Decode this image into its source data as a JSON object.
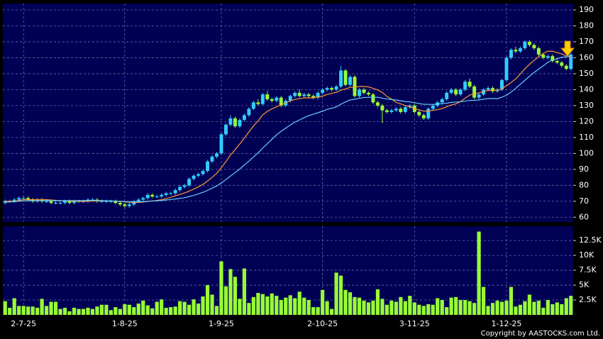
{
  "chart_data": [
    {
      "type": "candlestick",
      "up_color": "#33ccff",
      "down_color": "#99ff33",
      "grid": true,
      "ylim": [
        57,
        194
      ],
      "yticks": [
        60,
        70,
        80,
        90,
        100,
        110,
        120,
        130,
        140,
        150,
        160,
        170,
        180,
        190
      ],
      "open": [
        69,
        70,
        70,
        71,
        72,
        72,
        71,
        70,
        71,
        70,
        70,
        69,
        69,
        69,
        70,
        69,
        70,
        70,
        70,
        71,
        71,
        70,
        70,
        70,
        70,
        69,
        68,
        67,
        68,
        70,
        71,
        72,
        74,
        73,
        73,
        74,
        75,
        75,
        77,
        79,
        80,
        84,
        86,
        87,
        89,
        95,
        98,
        100,
        112,
        118,
        122,
        117,
        121,
        124,
        128,
        132,
        131,
        137,
        134,
        133,
        135,
        130,
        133,
        136,
        138,
        136,
        137,
        136,
        135,
        138,
        140,
        141,
        140,
        142,
        152,
        143,
        148,
        136,
        140,
        138,
        137,
        132,
        130,
        127,
        126,
        127,
        128,
        126,
        129,
        130,
        126,
        124,
        122,
        128,
        130,
        132,
        134,
        138,
        140,
        137,
        140,
        145,
        142,
        135,
        137,
        140,
        141,
        139,
        140,
        146,
        160,
        165,
        164,
        166,
        170,
        168,
        166,
        162,
        160,
        161,
        158,
        157,
        155,
        153
      ],
      "high": [
        71,
        71,
        72,
        73,
        73,
        73,
        72,
        72,
        72,
        71,
        71,
        70,
        70,
        71,
        71,
        71,
        71,
        71,
        72,
        72,
        72,
        71,
        71,
        71,
        71,
        70,
        69,
        69,
        71,
        72,
        73,
        75,
        75,
        74,
        75,
        76,
        76,
        78,
        80,
        81,
        85,
        87,
        88,
        90,
        96,
        99,
        101,
        113,
        119,
        124,
        123,
        122,
        125,
        129,
        133,
        134,
        138,
        139,
        135,
        136,
        136,
        134,
        137,
        139,
        140,
        138,
        138,
        137,
        139,
        141,
        142,
        142,
        143,
        155,
        153,
        149,
        149,
        141,
        141,
        139,
        138,
        133,
        131,
        128,
        128,
        129,
        129,
        130,
        131,
        131,
        127,
        125,
        129,
        131,
        133,
        135,
        139,
        141,
        141,
        141,
        146,
        147,
        143,
        138,
        141,
        142,
        142,
        141,
        147,
        161,
        166,
        167,
        167,
        171,
        171,
        169,
        167,
        163,
        162,
        162,
        159,
        158,
        156,
        163
      ],
      "low": [
        68,
        69,
        69,
        70,
        71,
        70,
        69,
        69,
        69,
        69,
        68,
        68,
        68,
        68,
        68,
        68,
        69,
        69,
        69,
        70,
        69,
        69,
        69,
        69,
        68,
        67,
        66,
        66,
        67,
        69,
        70,
        71,
        72,
        72,
        72,
        73,
        74,
        74,
        76,
        78,
        79,
        83,
        85,
        86,
        88,
        94,
        97,
        99,
        111,
        117,
        116,
        116,
        120,
        123,
        127,
        130,
        130,
        133,
        132,
        132,
        129,
        129,
        132,
        135,
        135,
        135,
        135,
        134,
        134,
        137,
        139,
        139,
        139,
        141,
        142,
        142,
        135,
        135,
        137,
        136,
        131,
        129,
        119,
        125,
        125,
        126,
        125,
        125,
        128,
        125,
        123,
        121,
        121,
        127,
        129,
        131,
        133,
        137,
        136,
        136,
        139,
        141,
        134,
        134,
        136,
        139,
        138,
        138,
        139,
        145,
        159,
        163,
        163,
        165,
        167,
        165,
        161,
        159,
        159,
        157,
        156,
        154,
        152,
        152
      ],
      "close": [
        70,
        70,
        71,
        72,
        72,
        71,
        70,
        71,
        70,
        70,
        69,
        69,
        69,
        70,
        69,
        70,
        70,
        70,
        71,
        71,
        70,
        70,
        70,
        70,
        69,
        68,
        67,
        68,
        70,
        71,
        72,
        74,
        73,
        73,
        74,
        75,
        75,
        77,
        79,
        80,
        84,
        86,
        87,
        89,
        95,
        98,
        100,
        112,
        118,
        122,
        117,
        121,
        124,
        128,
        132,
        131,
        137,
        134,
        133,
        135,
        130,
        133,
        136,
        138,
        136,
        137,
        136,
        135,
        138,
        140,
        141,
        140,
        142,
        152,
        143,
        148,
        136,
        140,
        138,
        137,
        132,
        130,
        127,
        126,
        127,
        128,
        126,
        129,
        130,
        126,
        124,
        122,
        128,
        130,
        132,
        134,
        138,
        140,
        137,
        140,
        145,
        142,
        135,
        137,
        140,
        141,
        139,
        140,
        146,
        160,
        165,
        164,
        166,
        170,
        168,
        166,
        162,
        160,
        161,
        158,
        157,
        155,
        153,
        162
      ],
      "series": [
        {
          "color": "#ff9933",
          "values": [
            70,
            70,
            70,
            70.5,
            71,
            71,
            71,
            71,
            71,
            71,
            70.8,
            70.6,
            70.4,
            70.3,
            70.1,
            70,
            70,
            69.9,
            70,
            70.1,
            70.2,
            70.2,
            70.2,
            70.2,
            70.1,
            69.9,
            69.6,
            69.4,
            69.3,
            69.3,
            69.5,
            69.9,
            70.2,
            70.5,
            71,
            71.7,
            72.5,
            73.4,
            74.3,
            75.2,
            76.4,
            77.6,
            79,
            80.6,
            82.7,
            85,
            87.5,
            91,
            94.9,
            99.1,
            102.4,
            105.9,
            109.6,
            113.5,
            117.2,
            120.5,
            124.2,
            126.4,
            127.9,
            129.2,
            130.5,
            131.7,
            132.9,
            133.9,
            134.3,
            134.9,
            134.8,
            134.9,
            135.4,
            135.9,
            137,
            137.7,
            138.3,
            139.7,
            140.4,
            141.5,
            141.5,
            142,
            142,
            141.7,
            140.8,
            139.8,
            138.3,
            135.7,
            134.1,
            132.1,
            131.1,
            130,
            129.2,
            128.1,
            127.3,
            126.5,
            126.6,
            127,
            127.5,
            128.1,
            129.3,
            130.4,
            131.1,
            132.5,
            134.6,
            136.6,
            137.3,
            138,
            138.8,
            139.5,
            139.6,
            139.6,
            140.5,
            142.5,
            144.5,
            146.7,
            149.8,
            153.1,
            155.9,
            158.4,
            160.7,
            162.7,
            164.2,
            164.1,
            163.3,
            162.4,
            161.1,
            160.3
          ]
        },
        {
          "color": "#66ccff",
          "values": [
            69.5,
            69.6,
            69.8,
            70,
            70.2,
            70.3,
            70.3,
            70.4,
            70.4,
            70.4,
            70.4,
            70.4,
            70.4,
            70.4,
            70.4,
            70.4,
            70.4,
            70.4,
            70.5,
            70.5,
            70.5,
            70.4,
            70.3,
            70.2,
            70.1,
            70,
            69.8,
            69.7,
            69.6,
            69.7,
            69.8,
            70,
            70.2,
            70.3,
            70.5,
            70.8,
            71.1,
            71.4,
            71.8,
            72.2,
            72.9,
            73.7,
            74.6,
            75.6,
            76.8,
            78.2,
            79.6,
            81.5,
            83.6,
            85.8,
            88,
            90.2,
            92.8,
            95.1,
            97.8,
            100.4,
            103.4,
            106.1,
            108.9,
            111.6,
            113.9,
            115.9,
            117.8,
            119.6,
            121,
            122.4,
            123.7,
            124.6,
            125.5,
            126.5,
            127.6,
            128.3,
            129.2,
            130.9,
            132.3,
            133.6,
            133.9,
            134.6,
            135.1,
            135.2,
            135.3,
            135.2,
            134.7,
            134.1,
            133.8,
            133.5,
            133,
            132.5,
            132.3,
            131.8,
            131.3,
            130.8,
            130.8,
            130.7,
            131,
            131.2,
            131.5,
            132,
            132.2,
            132.4,
            132.8,
            133.3,
            133.3,
            133.5,
            134,
            134.4,
            134.5,
            134.3,
            135.3,
            136.5,
            138.5,
            140.8,
            143.4,
            145.9,
            148.4,
            150.8,
            152.9,
            155,
            157.2,
            158.6,
            159.4,
            160.3,
            160.6,
            161.5
          ]
        }
      ]
    },
    {
      "type": "bar",
      "color": "#99ff33",
      "grid": true,
      "annotation": "Copyright by AASTOCKS.com Ltd.",
      "ylim": [
        0,
        14900
      ],
      "yticks": [
        {
          "value": 2500,
          "label": "2.5K"
        },
        {
          "value": 5000,
          "label": "5K"
        },
        {
          "value": 7500,
          "label": "7.5K"
        },
        {
          "value": 10000,
          "label": "10K"
        },
        {
          "value": 12500,
          "label": "12.5K"
        }
      ],
      "categories": [
        null,
        null,
        null,
        null,
        "2-7-25",
        null,
        null,
        null,
        null,
        null,
        null,
        null,
        null,
        null,
        null,
        null,
        null,
        null,
        null,
        null,
        null,
        null,
        null,
        null,
        null,
        null,
        "1-8-25",
        null,
        null,
        null,
        null,
        null,
        null,
        null,
        null,
        null,
        null,
        null,
        null,
        null,
        null,
        null,
        null,
        null,
        null,
        null,
        null,
        "1-9-25",
        null,
        null,
        null,
        null,
        null,
        null,
        null,
        null,
        null,
        null,
        null,
        null,
        null,
        null,
        null,
        null,
        null,
        null,
        null,
        null,
        null,
        "2-10-25",
        null,
        null,
        null,
        null,
        null,
        null,
        null,
        null,
        null,
        null,
        null,
        null,
        null,
        null,
        null,
        null,
        null,
        null,
        null,
        "3-11-25",
        null,
        null,
        null,
        null,
        null,
        null,
        null,
        null,
        null,
        null,
        null,
        null,
        null,
        null,
        null,
        null,
        null,
        null,
        null,
        "1-12-25",
        null,
        null,
        null,
        null,
        null,
        null,
        null,
        null,
        null,
        null,
        null,
        null,
        null,
        null
      ],
      "values": [
        2300,
        1200,
        2800,
        1500,
        1500,
        1400,
        1400,
        1200,
        2700,
        1500,
        2200,
        2200,
        1000,
        1200,
        600,
        1200,
        1000,
        1000,
        1200,
        1000,
        1400,
        1700,
        1700,
        800,
        1300,
        1000,
        1800,
        1700,
        1300,
        1900,
        2400,
        1600,
        1100,
        2200,
        2600,
        1200,
        1300,
        1400,
        2300,
        2200,
        1700,
        2600,
        1900,
        3100,
        5000,
        3400,
        1500,
        9000,
        4800,
        7700,
        6400,
        2700,
        7800,
        2000,
        3000,
        3700,
        3500,
        3100,
        3600,
        3200,
        2500,
        2900,
        3300,
        2800,
        3900,
        2900,
        2500,
        1300,
        1300,
        4200,
        2300,
        1000,
        7100,
        6600,
        4200,
        3800,
        3000,
        2900,
        2400,
        2100,
        2400,
        4300,
        2700,
        1700,
        2400,
        2200,
        3000,
        2300,
        3200,
        2100,
        1700,
        1500,
        1800,
        1700,
        2800,
        2500,
        1300,
        2900,
        3000,
        2500,
        2500,
        2300,
        2000,
        14000,
        4700,
        1500,
        2000,
        2400,
        2200,
        2400,
        4700,
        1400,
        1700,
        2300,
        3400,
        2200,
        2400,
        1200,
        2500,
        1800,
        2100,
        1800,
        2800,
        3200
      ]
    }
  ]
}
